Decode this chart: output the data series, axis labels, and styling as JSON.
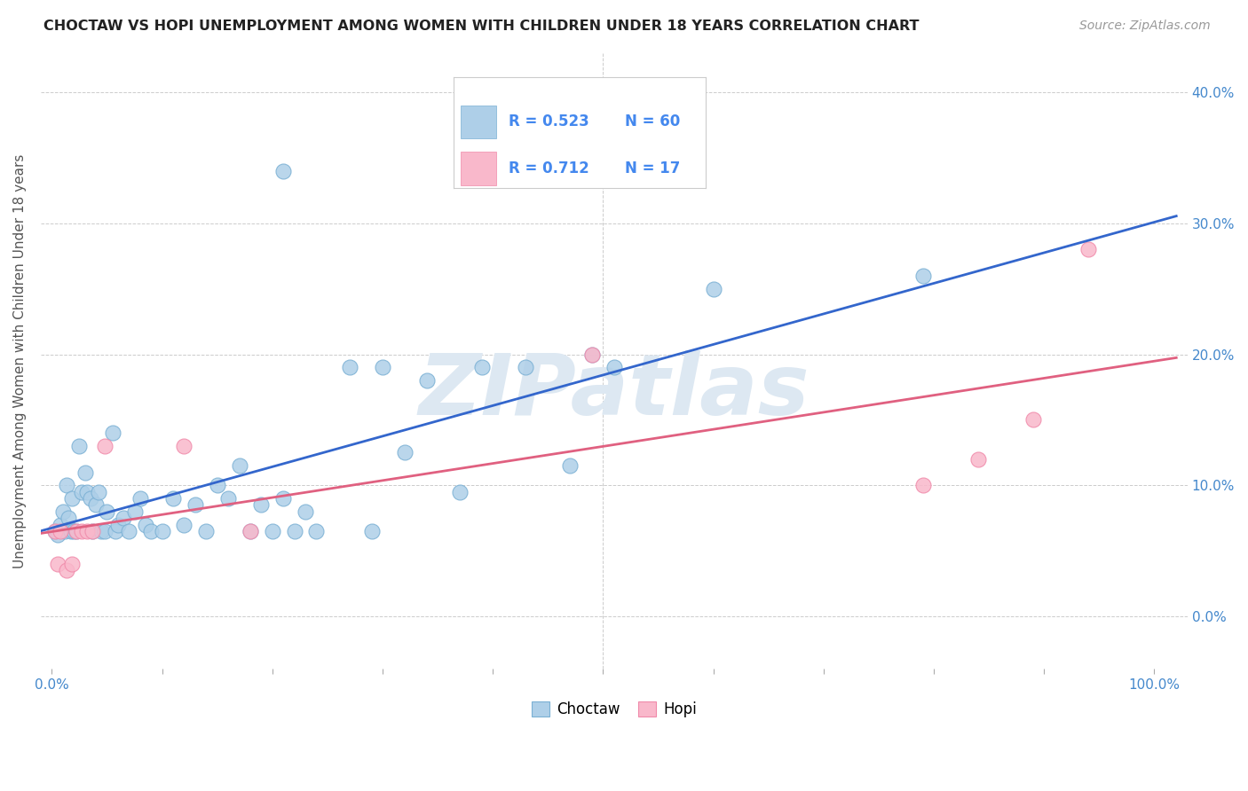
{
  "title": "CHOCTAW VS HOPI UNEMPLOYMENT AMONG WOMEN WITH CHILDREN UNDER 18 YEARS CORRELATION CHART",
  "source": "Source: ZipAtlas.com",
  "ylabel": "Unemployment Among Women with Children Under 18 years",
  "xlabel_ticks": [
    "0.0%",
    "",
    "",
    "",
    "",
    "",
    "",
    "",
    "",
    "100.0%"
  ],
  "xlabel_vals": [
    0.0,
    0.1,
    0.2,
    0.3,
    0.4,
    0.5,
    0.6,
    0.7,
    0.8,
    1.0
  ],
  "ylabel_ticks": [
    "0.0%",
    "10.0%",
    "20.0%",
    "30.0%",
    "40.0%"
  ],
  "ylabel_vals": [
    0.0,
    0.1,
    0.2,
    0.3,
    0.4
  ],
  "xlim": [
    -0.01,
    1.03
  ],
  "ylim": [
    -0.04,
    0.43
  ],
  "choctaw_color": "#aecfe8",
  "hopi_color": "#f9b8cb",
  "choctaw_edge_color": "#7ab0d4",
  "hopi_edge_color": "#f08aaa",
  "choctaw_line_color": "#3366cc",
  "hopi_line_color": "#e06080",
  "legend_color": "#4488ee",
  "watermark_text": "ZIPatlas",
  "watermark_color": "#dde8f2",
  "choctaw_points": [
    [
      0.003,
      0.065
    ],
    [
      0.005,
      0.062
    ],
    [
      0.008,
      0.07
    ],
    [
      0.01,
      0.08
    ],
    [
      0.012,
      0.065
    ],
    [
      0.013,
      0.1
    ],
    [
      0.015,
      0.075
    ],
    [
      0.017,
      0.065
    ],
    [
      0.018,
      0.09
    ],
    [
      0.02,
      0.065
    ],
    [
      0.022,
      0.065
    ],
    [
      0.025,
      0.13
    ],
    [
      0.027,
      0.095
    ],
    [
      0.03,
      0.11
    ],
    [
      0.032,
      0.095
    ],
    [
      0.035,
      0.09
    ],
    [
      0.037,
      0.065
    ],
    [
      0.04,
      0.085
    ],
    [
      0.042,
      0.095
    ],
    [
      0.045,
      0.065
    ],
    [
      0.048,
      0.065
    ],
    [
      0.05,
      0.08
    ],
    [
      0.055,
      0.14
    ],
    [
      0.058,
      0.065
    ],
    [
      0.06,
      0.07
    ],
    [
      0.065,
      0.075
    ],
    [
      0.07,
      0.065
    ],
    [
      0.075,
      0.08
    ],
    [
      0.08,
      0.09
    ],
    [
      0.085,
      0.07
    ],
    [
      0.09,
      0.065
    ],
    [
      0.1,
      0.065
    ],
    [
      0.11,
      0.09
    ],
    [
      0.12,
      0.07
    ],
    [
      0.13,
      0.085
    ],
    [
      0.14,
      0.065
    ],
    [
      0.15,
      0.1
    ],
    [
      0.16,
      0.09
    ],
    [
      0.17,
      0.115
    ],
    [
      0.18,
      0.065
    ],
    [
      0.19,
      0.085
    ],
    [
      0.2,
      0.065
    ],
    [
      0.21,
      0.09
    ],
    [
      0.22,
      0.065
    ],
    [
      0.23,
      0.08
    ],
    [
      0.24,
      0.065
    ],
    [
      0.27,
      0.19
    ],
    [
      0.29,
      0.065
    ],
    [
      0.3,
      0.19
    ],
    [
      0.32,
      0.125
    ],
    [
      0.34,
      0.18
    ],
    [
      0.37,
      0.095
    ],
    [
      0.39,
      0.19
    ],
    [
      0.43,
      0.19
    ],
    [
      0.47,
      0.115
    ],
    [
      0.49,
      0.2
    ],
    [
      0.51,
      0.19
    ],
    [
      0.6,
      0.25
    ],
    [
      0.21,
      0.34
    ],
    [
      0.79,
      0.26
    ]
  ],
  "hopi_points": [
    [
      0.003,
      0.065
    ],
    [
      0.005,
      0.04
    ],
    [
      0.008,
      0.065
    ],
    [
      0.013,
      0.035
    ],
    [
      0.018,
      0.04
    ],
    [
      0.022,
      0.065
    ],
    [
      0.027,
      0.065
    ],
    [
      0.032,
      0.065
    ],
    [
      0.037,
      0.065
    ],
    [
      0.048,
      0.13
    ],
    [
      0.12,
      0.13
    ],
    [
      0.18,
      0.065
    ],
    [
      0.49,
      0.2
    ],
    [
      0.79,
      0.1
    ],
    [
      0.84,
      0.12
    ],
    [
      0.89,
      0.15
    ],
    [
      0.94,
      0.28
    ]
  ],
  "background_color": "#ffffff",
  "grid_color": "#cccccc",
  "grid_linestyle": "--"
}
